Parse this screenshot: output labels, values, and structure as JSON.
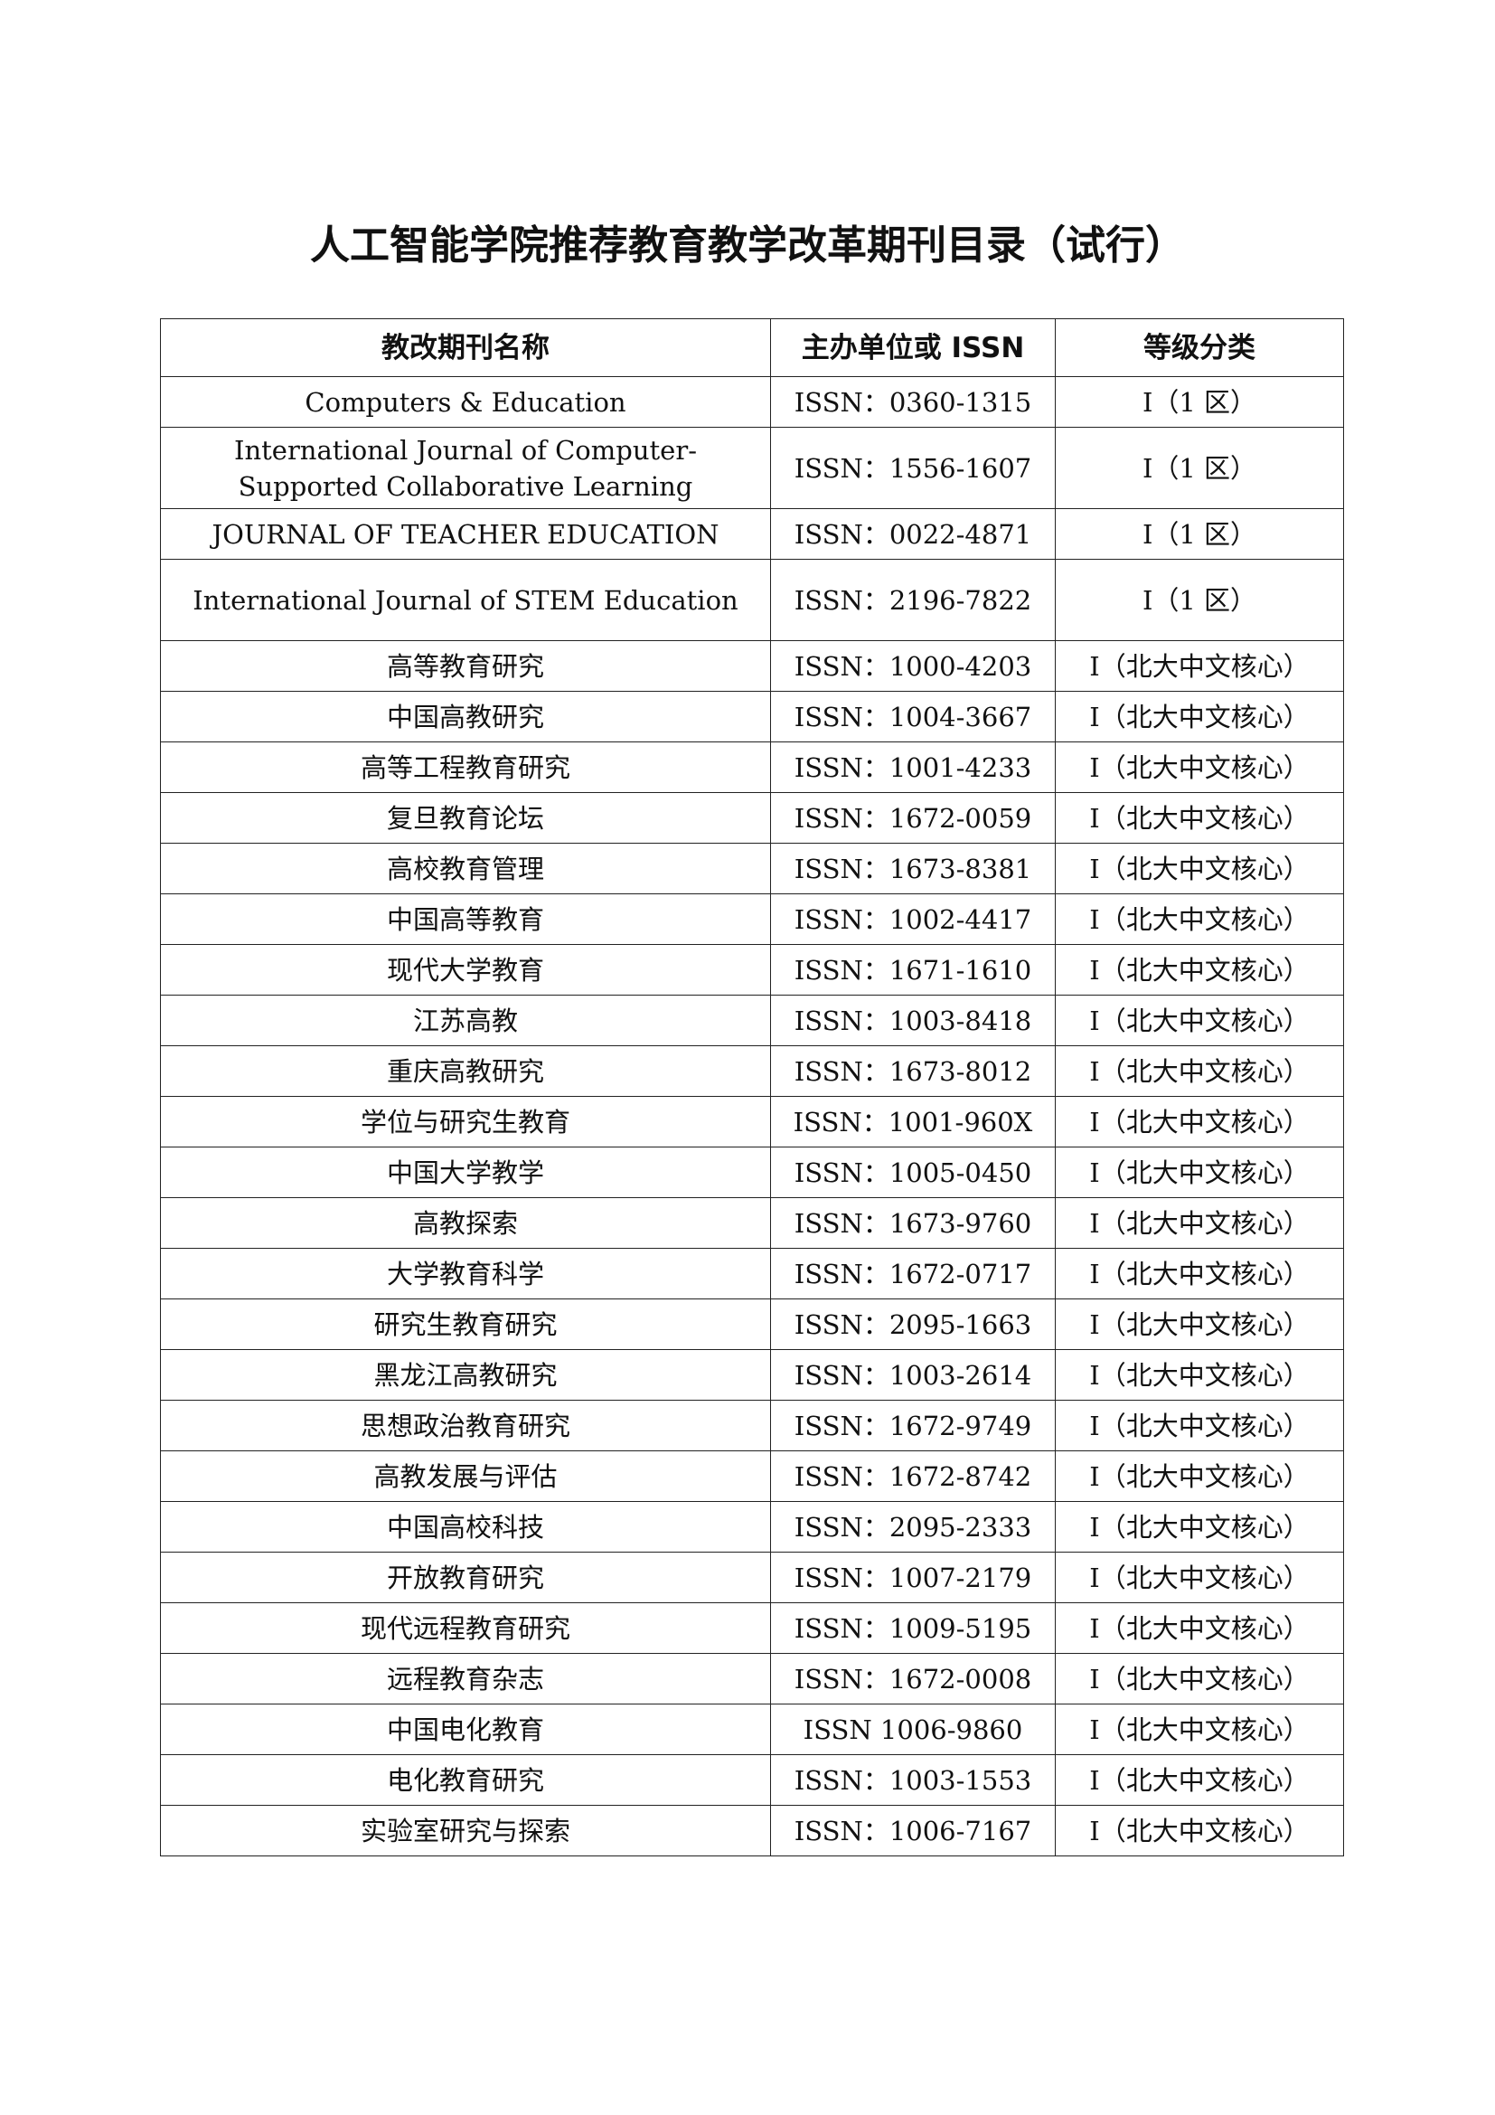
{
  "title": "人工智能学院推荐教育教学改革期刊目录（试行）",
  "table": {
    "headers": [
      "教改期刊名称",
      "主办单位或 ISSN",
      "等级分类"
    ],
    "rows": [
      {
        "name": "Computers & Education",
        "issn": "ISSN：0360-1315",
        "grade": "I（1 区）"
      },
      {
        "name": "International Journal of Computer-Supported Collaborative Learning",
        "issn": "ISSN：1556-1607",
        "grade": "I（1 区）"
      },
      {
        "name": "JOURNAL OF TEACHER EDUCATION",
        "issn": "ISSN：0022-4871",
        "grade": "I（1 区）"
      },
      {
        "name": "International Journal of STEM Education",
        "issn": "ISSN：2196-7822",
        "grade": "I（1 区）"
      },
      {
        "name": "高等教育研究",
        "issn": "ISSN：1000-4203",
        "grade": "I（北大中文核心）"
      },
      {
        "name": "中国高教研究",
        "issn": "ISSN：1004-3667",
        "grade": "I（北大中文核心）"
      },
      {
        "name": "高等工程教育研究",
        "issn": "ISSN：1001-4233",
        "grade": "I（北大中文核心）"
      },
      {
        "name": "复旦教育论坛",
        "issn": "ISSN：1672-0059",
        "grade": "I（北大中文核心）"
      },
      {
        "name": "高校教育管理",
        "issn": "ISSN：1673-8381",
        "grade": "I（北大中文核心）"
      },
      {
        "name": "中国高等教育",
        "issn": "ISSN：1002-4417",
        "grade": "I（北大中文核心）"
      },
      {
        "name": "现代大学教育",
        "issn": "ISSN：1671-1610",
        "grade": "I（北大中文核心）"
      },
      {
        "name": "江苏高教",
        "issn": "ISSN：1003-8418",
        "grade": "I（北大中文核心）"
      },
      {
        "name": "重庆高教研究",
        "issn": "ISSN：1673-8012",
        "grade": "I（北大中文核心）"
      },
      {
        "name": "学位与研究生教育",
        "issn": "ISSN：1001-960X",
        "grade": "I（北大中文核心）"
      },
      {
        "name": "中国大学教学",
        "issn": "ISSN：1005-0450",
        "grade": "I（北大中文核心）"
      },
      {
        "name": "高教探索",
        "issn": "ISSN：1673-9760",
        "grade": "I（北大中文核心）"
      },
      {
        "name": "大学教育科学",
        "issn": "ISSN：1672-0717",
        "grade": "I（北大中文核心）"
      },
      {
        "name": "研究生教育研究",
        "issn": "ISSN：2095-1663",
        "grade": "I（北大中文核心）"
      },
      {
        "name": "黑龙江高教研究",
        "issn": "ISSN：1003-2614",
        "grade": "I（北大中文核心）"
      },
      {
        "name": "思想政治教育研究",
        "issn": "ISSN：1672-9749",
        "grade": "I（北大中文核心）"
      },
      {
        "name": "高教发展与评估",
        "issn": "ISSN：1672-8742",
        "grade": "I（北大中文核心）"
      },
      {
        "name": "中国高校科技",
        "issn": "ISSN：2095-2333",
        "grade": "I（北大中文核心）"
      },
      {
        "name": "开放教育研究",
        "issn": "ISSN：1007-2179",
        "grade": "I（北大中文核心）"
      },
      {
        "name": "现代远程教育研究",
        "issn": "ISSN：1009-5195",
        "grade": "I（北大中文核心）"
      },
      {
        "name": "远程教育杂志",
        "issn": "ISSN：1672-0008",
        "grade": "I（北大中文核心）"
      },
      {
        "name": "中国电化教育",
        "issn": "ISSN 1006-9860",
        "grade": "I（北大中文核心）"
      },
      {
        "name": "电化教育研究",
        "issn": "ISSN：1003-1553",
        "grade": "I（北大中文核心）"
      },
      {
        "name": "实验室研究与探索",
        "issn": "ISSN：1006-7167",
        "grade": "I（北大中文核心）"
      }
    ]
  }
}
